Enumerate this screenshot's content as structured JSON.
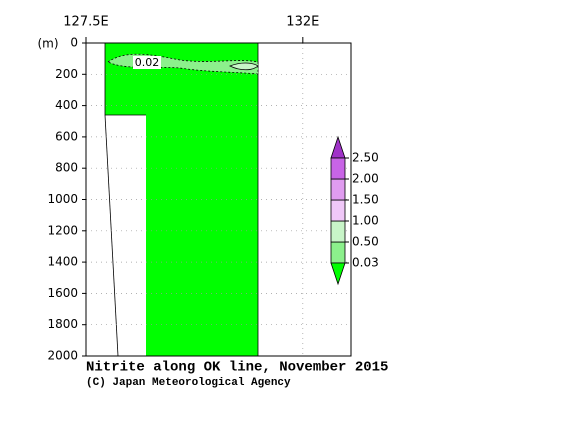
{
  "chart_data": {
    "type": "section",
    "title": "Nitrite along OK line, November 2015",
    "credit": "(C) Japan Meteorological Agency",
    "y_label": "(m)",
    "xlim": [
      127.5,
      133.0
    ],
    "xticks": [
      {
        "value": 127.5,
        "label": "127.5E"
      },
      {
        "value": 132,
        "label": "132E"
      }
    ],
    "ylim": [
      2000,
      0
    ],
    "yticks": [
      0,
      200,
      400,
      600,
      800,
      1000,
      1200,
      1400,
      1600,
      1800,
      2000
    ],
    "grid": true,
    "contour_label": "0.02",
    "levels": [
      {
        "value": 0.03,
        "label": "0.03"
      },
      {
        "value": 0.5,
        "label": "0.50"
      },
      {
        "value": 1.0,
        "label": "1.00"
      },
      {
        "value": 1.5,
        "label": "1.50"
      },
      {
        "value": 2.0,
        "label": "2.00"
      },
      {
        "value": 2.5,
        "label": "2.50"
      }
    ],
    "colors": [
      "#00ff00",
      "#8cf08c",
      "#c8f5c8",
      "#f0c8f8",
      "#e09cf0",
      "#c864e6",
      "#a032c8"
    ]
  }
}
